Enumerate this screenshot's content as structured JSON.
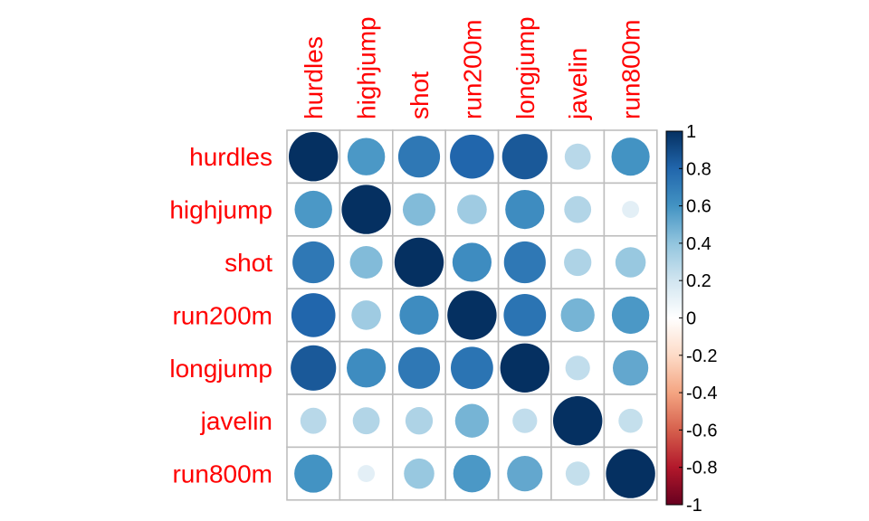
{
  "chart_data": {
    "type": "heatmap",
    "variables": [
      "hurdles",
      "highjump",
      "shot",
      "run200m",
      "longjump",
      "javelin",
      "run800m"
    ],
    "matrix": [
      [
        1.0,
        0.58,
        0.72,
        0.8,
        0.85,
        0.28,
        0.6
      ],
      [
        0.58,
        1.0,
        0.44,
        0.36,
        0.63,
        0.3,
        0.12
      ],
      [
        0.72,
        0.44,
        1.0,
        0.63,
        0.72,
        0.31,
        0.38
      ],
      [
        0.8,
        0.36,
        0.63,
        1.0,
        0.74,
        0.47,
        0.58
      ],
      [
        0.85,
        0.63,
        0.72,
        0.74,
        1.0,
        0.25,
        0.52
      ],
      [
        0.28,
        0.3,
        0.31,
        0.47,
        0.25,
        1.0,
        0.24
      ],
      [
        0.6,
        0.12,
        0.38,
        0.58,
        0.52,
        0.24,
        1.0
      ]
    ],
    "color_scale": {
      "range": [
        -1,
        1
      ],
      "ticks": [
        "1",
        "0.8",
        "0.6",
        "0.4",
        "0.2",
        "0",
        "-0.2",
        "-0.4",
        "-0.6",
        "-0.8",
        "-1"
      ],
      "stops": [
        "#67001f",
        "#b2182b",
        "#d6604d",
        "#f4a582",
        "#fddbc7",
        "#ffffff",
        "#d1e5f0",
        "#92c5de",
        "#4393c3",
        "#2166ac",
        "#053061"
      ]
    },
    "label_color": "#ff0000",
    "grid_color": "#bebebe"
  }
}
